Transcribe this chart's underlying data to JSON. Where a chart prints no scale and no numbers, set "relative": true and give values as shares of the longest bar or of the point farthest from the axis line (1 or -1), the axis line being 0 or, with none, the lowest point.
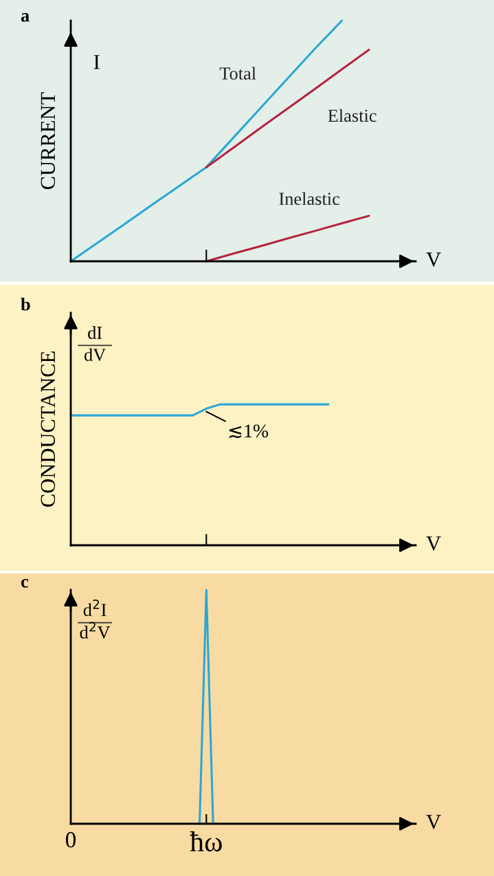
{
  "chart_data": [
    {
      "type": "line",
      "title": "a",
      "ylabel": "CURRENT",
      "xlabel": "V",
      "relative": true,
      "annotations": [
        "I"
      ],
      "categories": [
        null,
        null,
        null,
        null,
        null,
        null,
        null,
        null,
        null,
        null,
        null,
        null,
        null
      ],
      "series": [
        {
          "name": "Total",
          "color": "#2aa7d6",
          "values": [
            0,
            0.078,
            0.156,
            0.235,
            0.313,
            0.391,
            0.514,
            0.637,
            0.76,
            0.883,
            1.0,
            null,
            null
          ]
        },
        {
          "name": "Elastic",
          "color": "#b5243f",
          "values": [
            null,
            null,
            null,
            null,
            null,
            0.391,
            0.472,
            0.554,
            0.635,
            0.716,
            0.798,
            0.879,
            null
          ]
        },
        {
          "name": "Inelastic",
          "color": "#b5243f",
          "values": [
            null,
            null,
            null,
            null,
            null,
            0,
            0.032,
            0.063,
            0.095,
            0.126,
            0.158,
            0.189,
            null
          ]
        }
      ]
    },
    {
      "type": "line",
      "title": "b",
      "ylabel": "CONDUCTANCE",
      "xlabel": "V",
      "relative": true,
      "annotations": [
        "dI",
        "dV",
        "≲1%"
      ],
      "categories": [
        null,
        null,
        null,
        null,
        null,
        null,
        null,
        null,
        null,
        null,
        null,
        null,
        null,
        null,
        null,
        null,
        null,
        null,
        null,
        null,
        null,
        null,
        null,
        null,
        null
      ],
      "series": [
        {
          "color": "#2aa7d6",
          "values": [
            0.922,
            0.922,
            0.922,
            0.922,
            0.922,
            0.922,
            0.922,
            0.922,
            0.922,
            0.922,
            0.97,
            1,
            1,
            1,
            1,
            1,
            1,
            1,
            1,
            1,
            null,
            null,
            null,
            null,
            null
          ]
        }
      ]
    },
    {
      "type": "line",
      "title": "c",
      "xlabel": "V",
      "relative": true,
      "annotations": [
        "d$^{2}$I",
        "d$^{2}$V"
      ],
      "categories": [
        "0",
        null,
        null,
        null,
        null,
        null,
        null,
        null,
        null,
        null,
        null,
        null,
        null,
        null,
        null,
        null,
        null,
        null,
        null,
        null,
        "ħω",
        null,
        null,
        null,
        null,
        null,
        null,
        null,
        null,
        null,
        null,
        null,
        null,
        null,
        null,
        null,
        null,
        null,
        null,
        null,
        null,
        null,
        null,
        null,
        null,
        null,
        null,
        null,
        null
      ],
      "series": [
        {
          "color": "#2aa7d6",
          "values": [
            null,
            null,
            null,
            null,
            null,
            null,
            null,
            null,
            null,
            null,
            null,
            null,
            null,
            null,
            null,
            null,
            null,
            null,
            null,
            0,
            1,
            0,
            null,
            null,
            null,
            null,
            null,
            null,
            null,
            null,
            null,
            null,
            null,
            null,
            null,
            null,
            null,
            null,
            null,
            null,
            null,
            null,
            null,
            null,
            null,
            null,
            null,
            null,
            null
          ]
        }
      ]
    }
  ]
}
